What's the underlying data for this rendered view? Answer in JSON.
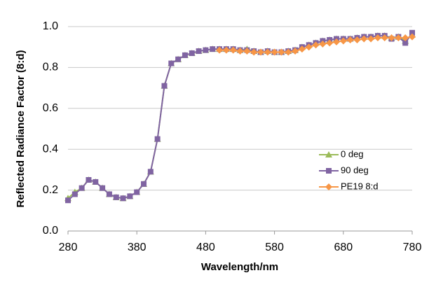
{
  "chart_data": {
    "type": "line",
    "x_label": "Wavelength/nm",
    "y_label": "Reflected Radiance Factor (8:d)",
    "x": [
      280,
      290,
      300,
      310,
      320,
      330,
      340,
      350,
      360,
      370,
      380,
      390,
      400,
      410,
      420,
      430,
      440,
      450,
      460,
      470,
      480,
      490,
      500,
      510,
      520,
      530,
      540,
      550,
      560,
      570,
      580,
      590,
      600,
      610,
      620,
      630,
      640,
      650,
      660,
      670,
      680,
      690,
      700,
      710,
      720,
      730,
      740,
      750,
      760,
      770,
      780
    ],
    "series": [
      {
        "name": "0 deg",
        "color": "#9bbb59",
        "marker": "triangle",
        "values": [
          0.16,
          0.19,
          0.21,
          0.25,
          0.24,
          0.21,
          0.18,
          0.165,
          0.16,
          0.17,
          0.19,
          0.23,
          0.29,
          0.45,
          0.71,
          0.82,
          0.84,
          0.86,
          0.87,
          0.88,
          0.885,
          0.89,
          0.89,
          0.89,
          0.89,
          0.885,
          0.89,
          0.88,
          0.875,
          0.88,
          0.875,
          0.875,
          0.88,
          0.885,
          0.9,
          0.91,
          0.92,
          0.93,
          0.935,
          0.94,
          0.94,
          0.94,
          0.945,
          0.95,
          0.95,
          0.955,
          0.955,
          0.945,
          0.95,
          0.93,
          0.96
        ]
      },
      {
        "name": "90 deg",
        "color": "#8064a2",
        "marker": "square",
        "values": [
          0.15,
          0.18,
          0.21,
          0.25,
          0.24,
          0.21,
          0.18,
          0.165,
          0.16,
          0.17,
          0.19,
          0.23,
          0.29,
          0.45,
          0.71,
          0.82,
          0.84,
          0.86,
          0.87,
          0.88,
          0.885,
          0.89,
          0.89,
          0.89,
          0.89,
          0.885,
          0.885,
          0.88,
          0.875,
          0.88,
          0.875,
          0.875,
          0.88,
          0.885,
          0.9,
          0.91,
          0.92,
          0.93,
          0.935,
          0.94,
          0.94,
          0.94,
          0.945,
          0.95,
          0.95,
          0.955,
          0.955,
          0.94,
          0.95,
          0.92,
          0.97
        ]
      },
      {
        "name": "PE19 8:d",
        "color": "#f79646",
        "marker": "diamond",
        "values": [
          null,
          null,
          null,
          null,
          null,
          null,
          null,
          null,
          null,
          null,
          null,
          null,
          null,
          null,
          null,
          null,
          null,
          null,
          null,
          null,
          null,
          null,
          0.885,
          0.885,
          0.885,
          0.88,
          0.88,
          0.875,
          0.875,
          0.875,
          0.875,
          0.875,
          0.875,
          0.88,
          0.89,
          0.9,
          0.91,
          0.915,
          0.92,
          0.925,
          0.93,
          0.935,
          0.935,
          0.94,
          0.94,
          0.945,
          0.945,
          0.945,
          0.945,
          0.945,
          0.95
        ]
      }
    ],
    "xlim": [
      280,
      780
    ],
    "xticks": [
      280,
      380,
      480,
      580,
      680,
      780
    ],
    "ylim": [
      0,
      1
    ],
    "yticks": [
      {
        "value": 0,
        "label": "0.0"
      },
      0.2,
      0.4,
      0.6,
      0.8,
      {
        "value": 1,
        "label": "1.0"
      }
    ],
    "grid": true
  }
}
